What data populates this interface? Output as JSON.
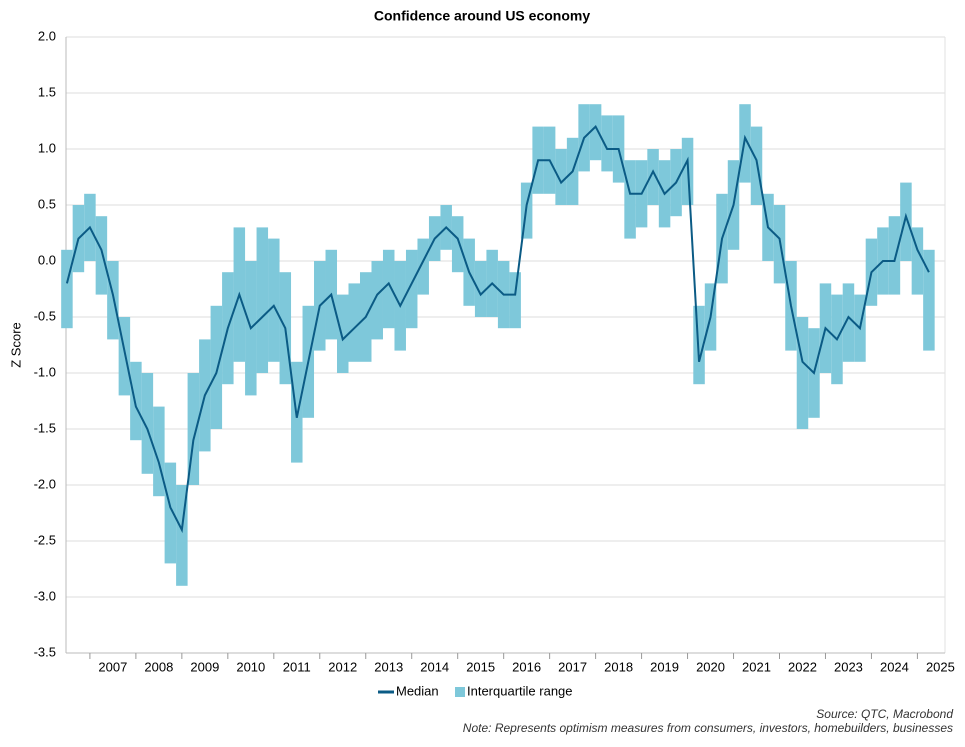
{
  "chart_data": {
    "type": "band_line",
    "title": "Confidence around US economy",
    "y_label": "Z Score",
    "source": "Source: QTC, Macrobond",
    "note": "Note: Represents optimism measures from consumers, investors, homebuilders, businesses",
    "xlim": [
      2006.48,
      2025.6
    ],
    "xticks": [
      2007,
      2008,
      2009,
      2010,
      2011,
      2012,
      2013,
      2014,
      2015,
      2016,
      2017,
      2018,
      2019,
      2020,
      2021,
      2022,
      2023,
      2024,
      2025
    ],
    "ylim": [
      -3.5,
      2
    ],
    "yticks": [
      {
        "value": 2,
        "label": "2.0"
      },
      1.5,
      {
        "value": 1,
        "label": "1.0"
      },
      0.5,
      {
        "value": 0,
        "label": "0.0"
      },
      -0.5,
      {
        "value": -1,
        "label": "-1.0"
      },
      -1.5,
      {
        "value": -2,
        "label": "-2.0"
      },
      -2.5,
      {
        "value": -3,
        "label": "-3.0"
      },
      -3.5
    ],
    "grid": true,
    "x": [
      2006.5,
      2006.75,
      2007,
      2007.25,
      2007.5,
      2007.75,
      2008,
      2008.25,
      2008.5,
      2008.75,
      2009,
      2009.25,
      2009.5,
      2009.75,
      2010,
      2010.25,
      2010.5,
      2010.75,
      2011,
      2011.25,
      2011.5,
      2011.75,
      2012,
      2012.25,
      2012.5,
      2012.75,
      2013,
      2013.25,
      2013.5,
      2013.75,
      2014,
      2014.25,
      2014.5,
      2014.75,
      2015,
      2015.25,
      2015.5,
      2015.75,
      2016,
      2016.25,
      2016.5,
      2016.75,
      2017,
      2017.25,
      2017.5,
      2017.75,
      2018,
      2018.25,
      2018.5,
      2018.75,
      2019,
      2019.25,
      2019.5,
      2019.75,
      2020,
      2020.25,
      2020.5,
      2020.75,
      2021,
      2021.25,
      2021.5,
      2021.75,
      2022,
      2022.25,
      2022.5,
      2022.75,
      2023,
      2023.25,
      2023.5,
      2023.75,
      2024,
      2024.25,
      2024.5,
      2024.75,
      2025,
      2025.25
    ],
    "series": [
      {
        "name": "Median",
        "color": "#0b5b85",
        "values": [
          -0.2,
          0.2,
          0.3,
          0.1,
          -0.3,
          -0.8,
          -1.3,
          -1.5,
          -1.8,
          -2.2,
          -2.4,
          -1.6,
          -1.2,
          -1.0,
          -0.6,
          -0.3,
          -0.6,
          -0.5,
          -0.4,
          -0.6,
          -1.4,
          -0.9,
          -0.4,
          -0.3,
          -0.7,
          -0.6,
          -0.5,
          -0.3,
          -0.2,
          -0.4,
          -0.2,
          0.0,
          0.2,
          0.3,
          0.2,
          -0.1,
          -0.3,
          -0.2,
          -0.3,
          -0.3,
          0.5,
          0.9,
          0.9,
          0.7,
          0.8,
          1.1,
          1.2,
          1.0,
          1.0,
          0.6,
          0.6,
          0.8,
          0.6,
          0.7,
          0.9,
          -0.9,
          -0.5,
          0.2,
          0.5,
          1.1,
          0.9,
          0.3,
          0.2,
          -0.4,
          -0.9,
          -1.0,
          -0.6,
          -0.7,
          -0.5,
          -0.6,
          -0.1,
          0.0,
          0.0,
          0.4,
          0.1,
          -0.1
        ]
      },
      {
        "name": "Interquartile range",
        "color": "#7ec8da",
        "low": [
          -0.6,
          -0.1,
          0.0,
          -0.3,
          -0.7,
          -1.2,
          -1.6,
          -1.9,
          -2.1,
          -2.7,
          -2.9,
          -2.0,
          -1.7,
          -1.5,
          -1.1,
          -0.9,
          -1.2,
          -1.0,
          -0.9,
          -1.1,
          -1.8,
          -1.4,
          -0.8,
          -0.7,
          -1.0,
          -0.9,
          -0.9,
          -0.7,
          -0.6,
          -0.8,
          -0.6,
          -0.3,
          0.0,
          0.1,
          -0.1,
          -0.4,
          -0.5,
          -0.5,
          -0.6,
          -0.6,
          0.2,
          0.6,
          0.6,
          0.5,
          0.5,
          0.8,
          0.9,
          0.8,
          0.7,
          0.2,
          0.3,
          0.5,
          0.3,
          0.4,
          0.5,
          -1.1,
          -0.8,
          -0.2,
          0.1,
          0.7,
          0.5,
          0.0,
          -0.2,
          -0.8,
          -1.5,
          -1.4,
          -1.0,
          -1.1,
          -0.9,
          -0.9,
          -0.4,
          -0.3,
          -0.3,
          0.0,
          -0.3,
          -0.8
        ],
        "high": [
          0.1,
          0.5,
          0.6,
          0.4,
          0.0,
          -0.5,
          -0.9,
          -1.0,
          -1.3,
          -1.8,
          -2.0,
          -1.0,
          -0.7,
          -0.4,
          -0.1,
          0.3,
          0.0,
          0.3,
          0.2,
          -0.1,
          -0.9,
          -0.4,
          0.0,
          0.1,
          -0.3,
          -0.2,
          -0.1,
          0.0,
          0.1,
          0.0,
          0.1,
          0.2,
          0.4,
          0.5,
          0.4,
          0.2,
          0.0,
          0.1,
          0.0,
          -0.1,
          0.7,
          1.2,
          1.2,
          1.0,
          1.1,
          1.4,
          1.4,
          1.3,
          1.3,
          0.9,
          0.9,
          1.0,
          0.9,
          1.0,
          1.1,
          -0.4,
          -0.2,
          0.6,
          0.9,
          1.4,
          1.2,
          0.6,
          0.5,
          0.0,
          -0.5,
          -0.6,
          -0.2,
          -0.3,
          -0.2,
          -0.3,
          0.2,
          0.3,
          0.4,
          0.7,
          0.3,
          0.1
        ]
      }
    ]
  }
}
